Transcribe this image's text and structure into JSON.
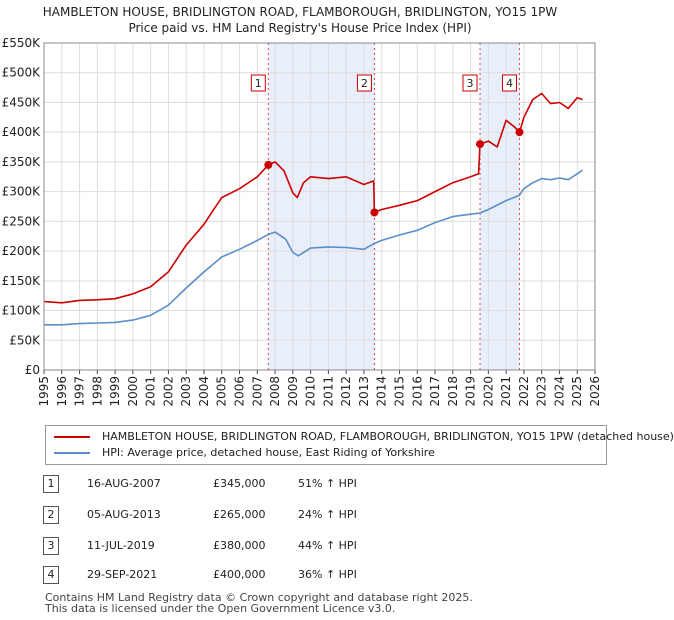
{
  "title_line1": "HAMBLETON HOUSE, BRIDLINGTON ROAD, FLAMBOROUGH, BRIDLINGTON, YO15 1PW",
  "title_line2": "Price paid vs. HM Land Registry's House Price Index (HPI)",
  "colors": {
    "red": "#cc0000",
    "blue": "#5b8fc9",
    "shade": "#e8eefa",
    "grid": "#dddddd"
  },
  "legend": {
    "red_label": "HAMBLETON HOUSE, BRIDLINGTON ROAD, FLAMBOROUGH, BRIDLINGTON, YO15 1PW (detached house)",
    "blue_label": "HPI: Average price, detached house, East Riding of Yorkshire"
  },
  "sales_table": [
    {
      "num": "1",
      "date": "16-AUG-2007",
      "price": "£345,000",
      "hpi": "51% ↑ HPI"
    },
    {
      "num": "2",
      "date": "05-AUG-2013",
      "price": "£265,000",
      "hpi": "24% ↑ HPI"
    },
    {
      "num": "3",
      "date": "11-JUL-2019",
      "price": "£380,000",
      "hpi": "44% ↑ HPI"
    },
    {
      "num": "4",
      "date": "29-SEP-2021",
      "price": "£400,000",
      "hpi": "36% ↑ HPI"
    }
  ],
  "footer_line1": "Contains HM Land Registry data © Crown copyright and database right 2025.",
  "footer_line2": "This data is licensed under the Open Government Licence v3.0.",
  "chart_data": {
    "type": "line",
    "title": "Price paid vs. HM Land Registry's House Price Index (HPI)",
    "xlim": [
      1995,
      2026
    ],
    "ylim": [
      0,
      550000
    ],
    "y_ticks": [
      0,
      50000,
      100000,
      150000,
      200000,
      250000,
      300000,
      350000,
      400000,
      450000,
      500000,
      550000
    ],
    "y_tick_labels": [
      "£0",
      "£50K",
      "£100K",
      "£150K",
      "£200K",
      "£250K",
      "£300K",
      "£350K",
      "£400K",
      "£450K",
      "£500K",
      "£550K"
    ],
    "x_ticks": [
      1995,
      1996,
      1997,
      1998,
      1999,
      2000,
      2001,
      2002,
      2003,
      2004,
      2005,
      2006,
      2007,
      2008,
      2009,
      2010,
      2011,
      2012,
      2013,
      2014,
      2015,
      2016,
      2017,
      2018,
      2019,
      2020,
      2021,
      2022,
      2023,
      2024,
      2025,
      2026
    ],
    "x_tick_labels": [
      "1995",
      "1996",
      "1997",
      "1998",
      "1999",
      "2000",
      "2001",
      "2002",
      "2003",
      "2004",
      "2005",
      "2006",
      "2007",
      "2008",
      "2009",
      "2010",
      "2011",
      "2012",
      "2013",
      "2014",
      "2015",
      "2016",
      "2017",
      "2018",
      "2019",
      "2020",
      "2021",
      "2022",
      "2023",
      "2024",
      "2025",
      "2026"
    ],
    "grid": true,
    "shaded_ranges": [
      [
        2007.62,
        2013.59
      ],
      [
        2019.53,
        2021.75
      ]
    ],
    "series": [
      {
        "name": "HAMBLETON HOUSE, BRIDLINGTON ROAD, FLAMBOROUGH, BRIDLINGTON, YO15 1PW (detached house)",
        "color": "#cc0000",
        "x": [
          1995,
          1996,
          1997,
          1998,
          1999,
          2000,
          2001,
          2002,
          2003,
          2004,
          2004.5,
          2005,
          2006,
          2007,
          2007.62,
          2008,
          2008.5,
          2009,
          2009.25,
          2009.6,
          2010,
          2011,
          2012,
          2013,
          2013.55,
          2013.59,
          2014,
          2015,
          2016,
          2017,
          2018,
          2019,
          2019.45,
          2019.53,
          2020,
          2020.5,
          2021,
          2021.5,
          2021.75,
          2022,
          2022.5,
          2023,
          2023.5,
          2024,
          2024.5,
          2025,
          2025.3
        ],
        "y": [
          115000,
          113000,
          117000,
          118000,
          120000,
          128000,
          140000,
          165000,
          210000,
          245000,
          268000,
          290000,
          305000,
          325000,
          345000,
          350000,
          335000,
          298000,
          290000,
          315000,
          325000,
          322000,
          325000,
          312000,
          318000,
          265000,
          270000,
          277000,
          285000,
          300000,
          315000,
          325000,
          330000,
          380000,
          385000,
          375000,
          420000,
          408000,
          400000,
          425000,
          455000,
          465000,
          448000,
          450000,
          440000,
          458000,
          455000
        ]
      },
      {
        "name": "HPI: Average price, detached house, East Riding of Yorkshire",
        "color": "#5b8fc9",
        "x": [
          1995,
          1996,
          1997,
          1998,
          1999,
          2000,
          2001,
          2002,
          2003,
          2004,
          2005,
          2006,
          2007,
          2007.62,
          2008,
          2008.6,
          2009,
          2009.3,
          2010,
          2011,
          2012,
          2013,
          2013.59,
          2014,
          2015,
          2016,
          2017,
          2018,
          2019,
          2019.53,
          2020,
          2021,
          2021.75,
          2022,
          2022.5,
          2023,
          2023.5,
          2024,
          2024.5,
          2025,
          2025.3
        ],
        "y": [
          76000,
          76000,
          78000,
          79000,
          80000,
          84000,
          92000,
          109000,
          138000,
          165000,
          190000,
          203000,
          218000,
          228000,
          232000,
          220000,
          198000,
          192000,
          205000,
          207000,
          206000,
          203000,
          213000,
          218000,
          227000,
          235000,
          248000,
          258000,
          262000,
          264000,
          270000,
          285000,
          294000,
          305000,
          315000,
          322000,
          320000,
          323000,
          320000,
          330000,
          336000
        ]
      }
    ],
    "sale_markers": [
      {
        "label": "1",
        "x": 2007.62,
        "y": 345000
      },
      {
        "label": "2",
        "x": 2013.59,
        "y": 265000
      },
      {
        "label": "3",
        "x": 2019.53,
        "y": 380000
      },
      {
        "label": "4",
        "x": 2021.75,
        "y": 400000
      }
    ]
  }
}
